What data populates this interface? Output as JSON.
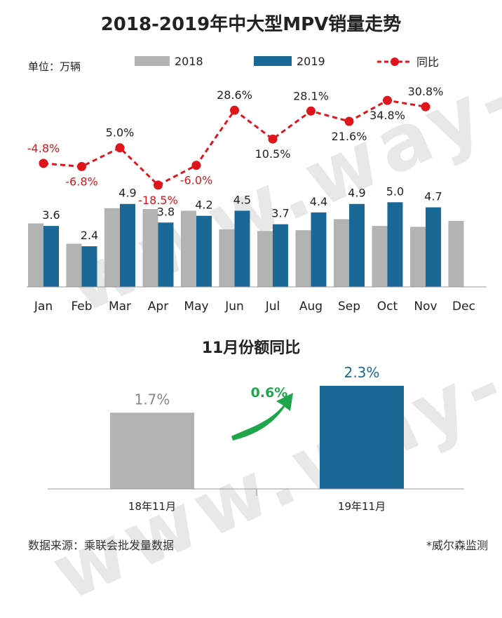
{
  "title": "2018-2019年中大型MPV销量走势",
  "unit_label": "单位：万辆",
  "watermark": "www.way-s.cn",
  "colors": {
    "y2018": "#b3b3b3",
    "y2019": "#1a6896",
    "yoy": "#e0151c",
    "arrow": "#1fa64b"
  },
  "chart_data": [
    {
      "type": "bar",
      "categories": [
        "Jan",
        "Feb",
        "Mar",
        "Apr",
        "May",
        "Jun",
        "Jul",
        "Aug",
        "Sep",
        "Oct",
        "Nov",
        "Dec"
      ],
      "series": [
        {
          "name": "2018",
          "values": [
            3.75,
            2.55,
            4.65,
            4.6,
            4.5,
            3.4,
            3.3,
            3.35,
            4.0,
            3.6,
            3.55,
            3.9
          ]
        },
        {
          "name": "2019",
          "values": [
            3.6,
            2.4,
            4.9,
            3.8,
            4.2,
            4.5,
            3.7,
            4.4,
            4.9,
            5.0,
            4.7,
            null
          ]
        }
      ],
      "data_labels": [
        "3.6",
        "2.4",
        "4.9",
        "3.8",
        "4.2",
        "4.5",
        "3.7",
        "4.4",
        "4.9",
        "5.0",
        "4.7",
        ""
      ],
      "ylim": [
        0,
        7.5
      ],
      "grid": false,
      "legend": "top"
    },
    {
      "type": "line",
      "categories": [
        "Jan",
        "Feb",
        "Mar",
        "Apr",
        "May",
        "Jun",
        "Jul",
        "Aug",
        "Sep",
        "Oct",
        "Nov"
      ],
      "series": [
        {
          "name": "同比",
          "values": [
            -4.8,
            -6.8,
            5.0,
            -18.5,
            -6.0,
            28.6,
            10.5,
            28.1,
            21.6,
            34.8,
            30.8
          ]
        }
      ],
      "data_labels": [
        "-4.8%",
        "-6.8%",
        "5.0%",
        "-18.5%",
        "-6.0%",
        "28.6%",
        "10.5%",
        "28.1%",
        "21.6%",
        "34.8%",
        "30.8%"
      ],
      "ylim": [
        -30,
        45
      ]
    },
    {
      "type": "bar",
      "title": "11月份额同比",
      "categories": [
        "18年11月",
        "19年11月"
      ],
      "values": [
        1.7,
        2.3
      ],
      "data_labels": [
        "1.7%",
        "2.3%"
      ],
      "annotation": "0.6%",
      "ylim": [
        0,
        3.0
      ]
    }
  ],
  "footer": {
    "source": "数据来源：乘联会批发量数据",
    "credit": "*威尔森监测"
  }
}
